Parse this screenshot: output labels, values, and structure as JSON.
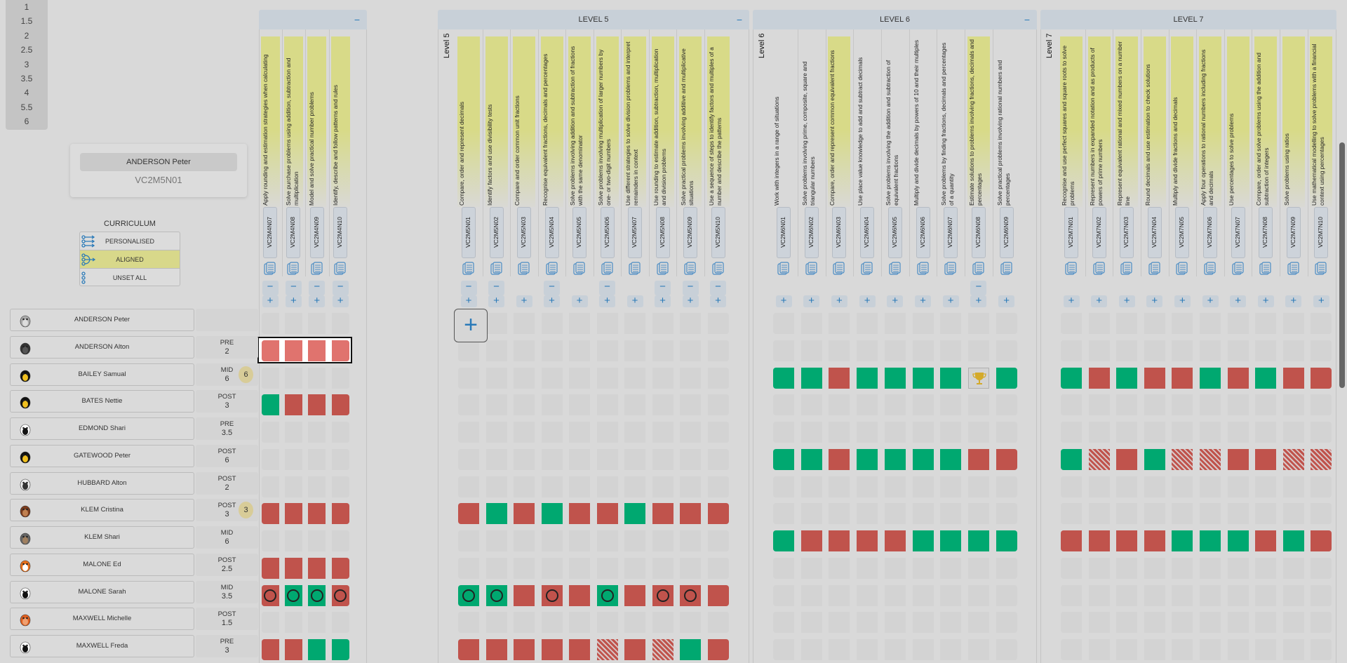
{
  "level_filter": [
    "1",
    "1.5",
    "2",
    "2.5",
    "3",
    "3.5",
    "4",
    "5.5",
    "6"
  ],
  "curriculum": {
    "title": "CURRICULUM",
    "options": [
      {
        "label": "PERSONALISED",
        "icon": "personalised-icon",
        "active": false
      },
      {
        "label": "ALIGNED",
        "icon": "aligned-icon",
        "active": true
      },
      {
        "label": "UNSET ALL",
        "icon": "unset-icon",
        "active": false
      }
    ]
  },
  "tooltip": {
    "name": "ANDERSON Peter",
    "code": "VC2M5N01"
  },
  "colors": {
    "red": "#c0534c",
    "green": "#00a870",
    "light_red": "#e0736e",
    "highlight": "#d8da88",
    "accent": "#2a7ab8"
  },
  "groups": [
    {
      "title": "",
      "label": "",
      "columns": [
        {
          "code": "VC2M4N07",
          "text": "Apply rounding and estimation strategies when calculating",
          "hl": true,
          "minus": true
        },
        {
          "code": "VC2M4N08",
          "text": "Solve purchase problems using addition, subtraction and multiplication",
          "hl": true,
          "minus": true
        },
        {
          "code": "VC2M4N09",
          "text": "Model and solve practical number problems",
          "hl": true,
          "minus": true
        },
        {
          "code": "VC2M4N10",
          "text": "Identify, describe and follow patterns and rules",
          "hl": true,
          "minus": true
        }
      ]
    },
    {
      "title": "LEVEL 5",
      "label": "Level 5",
      "columns": [
        {
          "code": "VC2M5N01",
          "text": "Compare, order and represent decimals",
          "hl": true,
          "minus": true
        },
        {
          "code": "VC2M5N02",
          "text": "Identify factors and use divisibility tests",
          "hl": true,
          "minus": true
        },
        {
          "code": "VC2M5N03",
          "text": "Compare and order common unit fractions",
          "hl": true,
          "minus": false
        },
        {
          "code": "VC2M5N04",
          "text": "Recognise equivalent fractions, decimals and percentages",
          "hl": true,
          "minus": true
        },
        {
          "code": "VC2M5N05",
          "text": "Solve problems involving addition and subtraction of fractions with the same denominator",
          "hl": true,
          "minus": false
        },
        {
          "code": "VC2M5N06",
          "text": "Solve problems involving multiplication of larger numbers by one- or two-digit numbers",
          "hl": true,
          "minus": true
        },
        {
          "code": "VC2M5N07",
          "text": "Use different strategies to solve division problems and interpret remainders in context",
          "hl": true,
          "minus": false
        },
        {
          "code": "VC2M5N08",
          "text": "Use rounding to estimate addition, subtraction, multiplication and division problems",
          "hl": true,
          "minus": true
        },
        {
          "code": "VC2M5N09",
          "text": "Solve practical problems involving additive and multiplicative situations",
          "hl": true,
          "minus": true
        },
        {
          "code": "VC2M5N10",
          "text": "Use a sequence of steps to identify factors and multiples of a number and describe the patterns",
          "hl": true,
          "minus": true
        }
      ]
    },
    {
      "title": "LEVEL 6",
      "label": "Level 6",
      "columns": [
        {
          "code": "VC2M6N01",
          "text": "Work with integers in a range of situations",
          "hl": false,
          "minus": false
        },
        {
          "code": "VC2M6N02",
          "text": "Solve problems involving prime, composite, square and triangular numbers",
          "hl": false,
          "minus": false
        },
        {
          "code": "VC2M6N03",
          "text": "Compare, order and represent common equivalent fractions",
          "hl": true,
          "minus": false
        },
        {
          "code": "VC2M6N04",
          "text": "Use place value knowledge to add and subtract decimals",
          "hl": false,
          "minus": false
        },
        {
          "code": "VC2M6N05",
          "text": "Solve problems involving the addition and subtraction of equivalent fractions",
          "hl": false,
          "minus": false
        },
        {
          "code": "VC2M6N06",
          "text": "Multiply and divide decimals by powers of 10 and their multiples",
          "hl": false,
          "minus": false
        },
        {
          "code": "VC2M6N07",
          "text": "Solve problems by finding fractions, decimals and percentages of a quantity",
          "hl": false,
          "minus": false
        },
        {
          "code": "VC2M6N08",
          "text": "Estimate solutions to problems involving fractions, decimals and percentages",
          "hl": true,
          "minus": true
        },
        {
          "code": "VC2M6N09",
          "text": "Solve practical problems involving rational numbers and percentages",
          "hl": false,
          "minus": false
        }
      ]
    },
    {
      "title": "LEVEL 7",
      "label": "Level 7",
      "columns": [
        {
          "code": "VC2M7N01",
          "text": "Recognise and use perfect squares and square roots to solve problems",
          "hl": true,
          "minus": false
        },
        {
          "code": "VC2M7N02",
          "text": "Represent numbers in expanded notation and as products of powers of prime numbers",
          "hl": true,
          "minus": false
        },
        {
          "code": "VC2M7N03",
          "text": "Represent equivalent rational and mixed numbers on a number line",
          "hl": true,
          "minus": false
        },
        {
          "code": "VC2M7N04",
          "text": "Round decimals and use estimation to check solutions",
          "hl": true,
          "minus": false
        },
        {
          "code": "VC2M7N05",
          "text": "Multiply and divide fractions and decimals",
          "hl": true,
          "minus": false
        },
        {
          "code": "VC2M7N06",
          "text": "Apply four operations to rational numbers including fractions and decimals",
          "hl": true,
          "minus": false
        },
        {
          "code": "VC2M7N07",
          "text": "Use percentages to solve problems",
          "hl": true,
          "minus": false
        },
        {
          "code": "VC2M7N08",
          "text": "Compare, order and solve problems using the addition and subtraction of integers",
          "hl": true,
          "minus": false
        },
        {
          "code": "VC2M7N09",
          "text": "Solve problems using ratios",
          "hl": true,
          "minus": false
        },
        {
          "code": "VC2M7N10",
          "text": "Use mathematical modelling to solve problems with a financial context using percentages",
          "hl": true,
          "minus": false
        }
      ]
    }
  ],
  "students": [
    {
      "name": "ANDERSON Peter",
      "avatar": "rabbit",
      "phase": "",
      "level": "",
      "badge": "",
      "cells": [
        "----",
        "----------",
        "---------",
        "----------"
      ]
    },
    {
      "name": "ANDERSON Alton",
      "avatar": "cat",
      "phase": "PRE",
      "level": "2",
      "badge": "",
      "cells": [
        "LLLL",
        "----------",
        "---------",
        "----------"
      ]
    },
    {
      "name": "BAILEY Samual",
      "avatar": "penguin",
      "phase": "MID",
      "level": "6",
      "badge": "6",
      "cells": [
        "----",
        "----------",
        "GGRGGGGTG",
        "GRGRRGRGRR"
      ]
    },
    {
      "name": "BATES Nettie",
      "avatar": "penguin",
      "phase": "POST",
      "level": "3",
      "badge": "",
      "cells": [
        "GRRR",
        "----------",
        "---------",
        "----------"
      ]
    },
    {
      "name": "EDMOND Shari",
      "avatar": "panda",
      "phase": "PRE",
      "level": "3.5",
      "badge": "",
      "cells": [
        "----",
        "----------",
        "---------",
        "----------"
      ]
    },
    {
      "name": "GATEWOOD Peter",
      "avatar": "penguin",
      "phase": "POST",
      "level": "6",
      "badge": "",
      "cells": [
        "----",
        "----------",
        "GGRGGGGRR",
        "GSRGSSRRSS"
      ]
    },
    {
      "name": "HUBBARD Alton",
      "avatar": "zebra",
      "phase": "POST",
      "level": "2",
      "badge": "",
      "cells": [
        "----",
        "----------",
        "---------",
        "----------"
      ]
    },
    {
      "name": "KLEM Cristina",
      "avatar": "monkey",
      "phase": "POST",
      "level": "3",
      "badge": "3",
      "cells": [
        "RRRR",
        "RGRGRRGRRR",
        "---------",
        "----------"
      ]
    },
    {
      "name": "KLEM Shari",
      "avatar": "wolf",
      "phase": "MID",
      "level": "6",
      "badge": "",
      "cells": [
        "----",
        "----------",
        "GRRRRGGGG",
        "RRRRGGGRGR"
      ]
    },
    {
      "name": "MALONE Ed",
      "avatar": "fox",
      "phase": "POST",
      "level": "2.5",
      "badge": "",
      "cells": [
        "RRRR",
        "----------",
        "---------",
        "----------"
      ]
    },
    {
      "name": "MALONE Sarah",
      "avatar": "panda",
      "phase": "MID",
      "level": "3.5",
      "badge": "",
      "cells": [
        "rggr",
        "ggRrRgRrrR",
        "---------",
        "----------"
      ]
    },
    {
      "name": "MAXWELL Michelle",
      "avatar": "tiger",
      "phase": "POST",
      "level": "1.5",
      "badge": "",
      "cells": [
        "----",
        "----------",
        "---------",
        "----------"
      ]
    },
    {
      "name": "MAXWELL Freda",
      "avatar": "panda",
      "phase": "PRE",
      "level": "3",
      "badge": "",
      "cells": [
        "RRGG",
        "RRRRRSRSGR",
        "---------",
        "----------"
      ]
    }
  ]
}
